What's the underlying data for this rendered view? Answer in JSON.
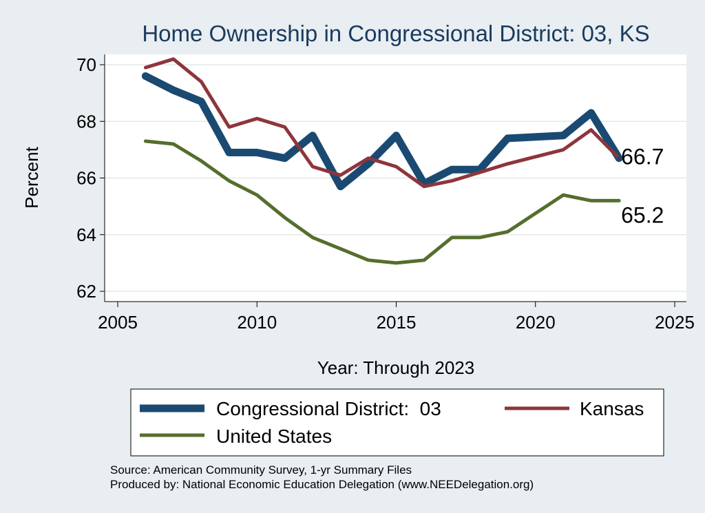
{
  "chart_data": {
    "type": "line",
    "title": "Home Ownership in Congressional District:  03, KS",
    "xlabel": "Year: Through 2023",
    "ylabel": "Percent",
    "xlim": [
      2005,
      2025
    ],
    "ylim": [
      62,
      70
    ],
    "xticks": [
      2005,
      2010,
      2015,
      2020,
      2025
    ],
    "yticks": [
      62,
      64,
      66,
      68,
      70
    ],
    "grid": true,
    "legend_position": "bottom",
    "series": [
      {
        "name": "Congressional District:  03",
        "color": "#1a4a72",
        "x": [
          2006,
          2007,
          2008,
          2009,
          2010,
          2011,
          2012,
          2013,
          2014,
          2015,
          2016,
          2017,
          2018,
          2019,
          2021,
          2022,
          2023
        ],
        "values": [
          69.6,
          69.1,
          68.7,
          66.9,
          66.9,
          66.7,
          67.5,
          65.7,
          66.5,
          67.5,
          65.8,
          66.3,
          66.3,
          67.4,
          67.5,
          68.3,
          66.7
        ]
      },
      {
        "name": "Kansas",
        "color": "#8e353b",
        "x": [
          2006,
          2007,
          2008,
          2009,
          2010,
          2011,
          2012,
          2013,
          2014,
          2015,
          2016,
          2017,
          2018,
          2019,
          2021,
          2022,
          2023
        ],
        "values": [
          69.9,
          70.2,
          69.4,
          67.8,
          68.1,
          67.8,
          66.4,
          66.1,
          66.7,
          66.4,
          65.7,
          65.9,
          66.2,
          66.5,
          67.0,
          67.7,
          66.7
        ]
      },
      {
        "name": "United States",
        "color": "#556e2c",
        "x": [
          2006,
          2007,
          2008,
          2009,
          2010,
          2011,
          2012,
          2013,
          2014,
          2015,
          2016,
          2017,
          2018,
          2019,
          2021,
          2022,
          2023
        ],
        "values": [
          67.3,
          67.2,
          66.6,
          65.9,
          65.4,
          64.6,
          63.9,
          63.5,
          63.1,
          63.0,
          63.1,
          63.9,
          63.9,
          64.1,
          65.4,
          65.2,
          65.2
        ]
      }
    ],
    "end_labels": [
      {
        "series": "Congressional District:  03",
        "text": "66.7"
      },
      {
        "series": "United States",
        "text": "65.2"
      }
    ]
  },
  "notes": {
    "source": "Source: American Community Survey, 1-yr Summary Files",
    "produced_by": "Produced by: National Economic Education Delegation (www.NEEDelegation.org)"
  }
}
